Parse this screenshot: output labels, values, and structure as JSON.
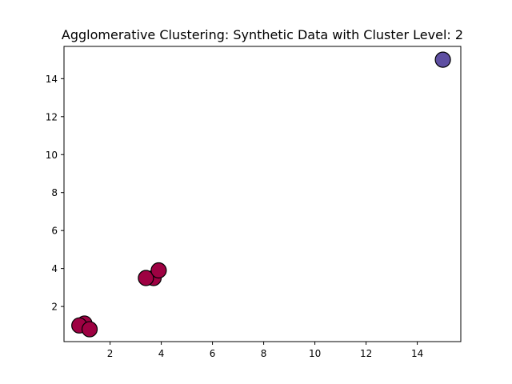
{
  "chart_data": {
    "type": "scatter",
    "title": "Agglomerative Clustering: Synthetic Data with Cluster Level: 2",
    "xlabel": "",
    "ylabel": "",
    "xlim": [
      0.2,
      15.7
    ],
    "ylim": [
      0.15,
      15.7
    ],
    "xticks": [
      2,
      4,
      6,
      8,
      10,
      12,
      14
    ],
    "yticks": [
      2,
      4,
      6,
      8,
      10,
      12,
      14
    ],
    "grid": false,
    "points": [
      {
        "x": 1.0,
        "y": 1.1,
        "cluster": 0
      },
      {
        "x": 0.8,
        "y": 1.0,
        "cluster": 0
      },
      {
        "x": 1.2,
        "y": 0.8,
        "cluster": 0
      },
      {
        "x": 3.7,
        "y": 3.5,
        "cluster": 0
      },
      {
        "x": 3.4,
        "y": 3.5,
        "cluster": 0
      },
      {
        "x": 3.9,
        "y": 3.9,
        "cluster": 0
      },
      {
        "x": 15.0,
        "y": 15.0,
        "cluster": 1
      }
    ],
    "cluster_colors": [
      "#9e0142",
      "#5e4fa2"
    ],
    "marker_edge_color": "#000000"
  }
}
